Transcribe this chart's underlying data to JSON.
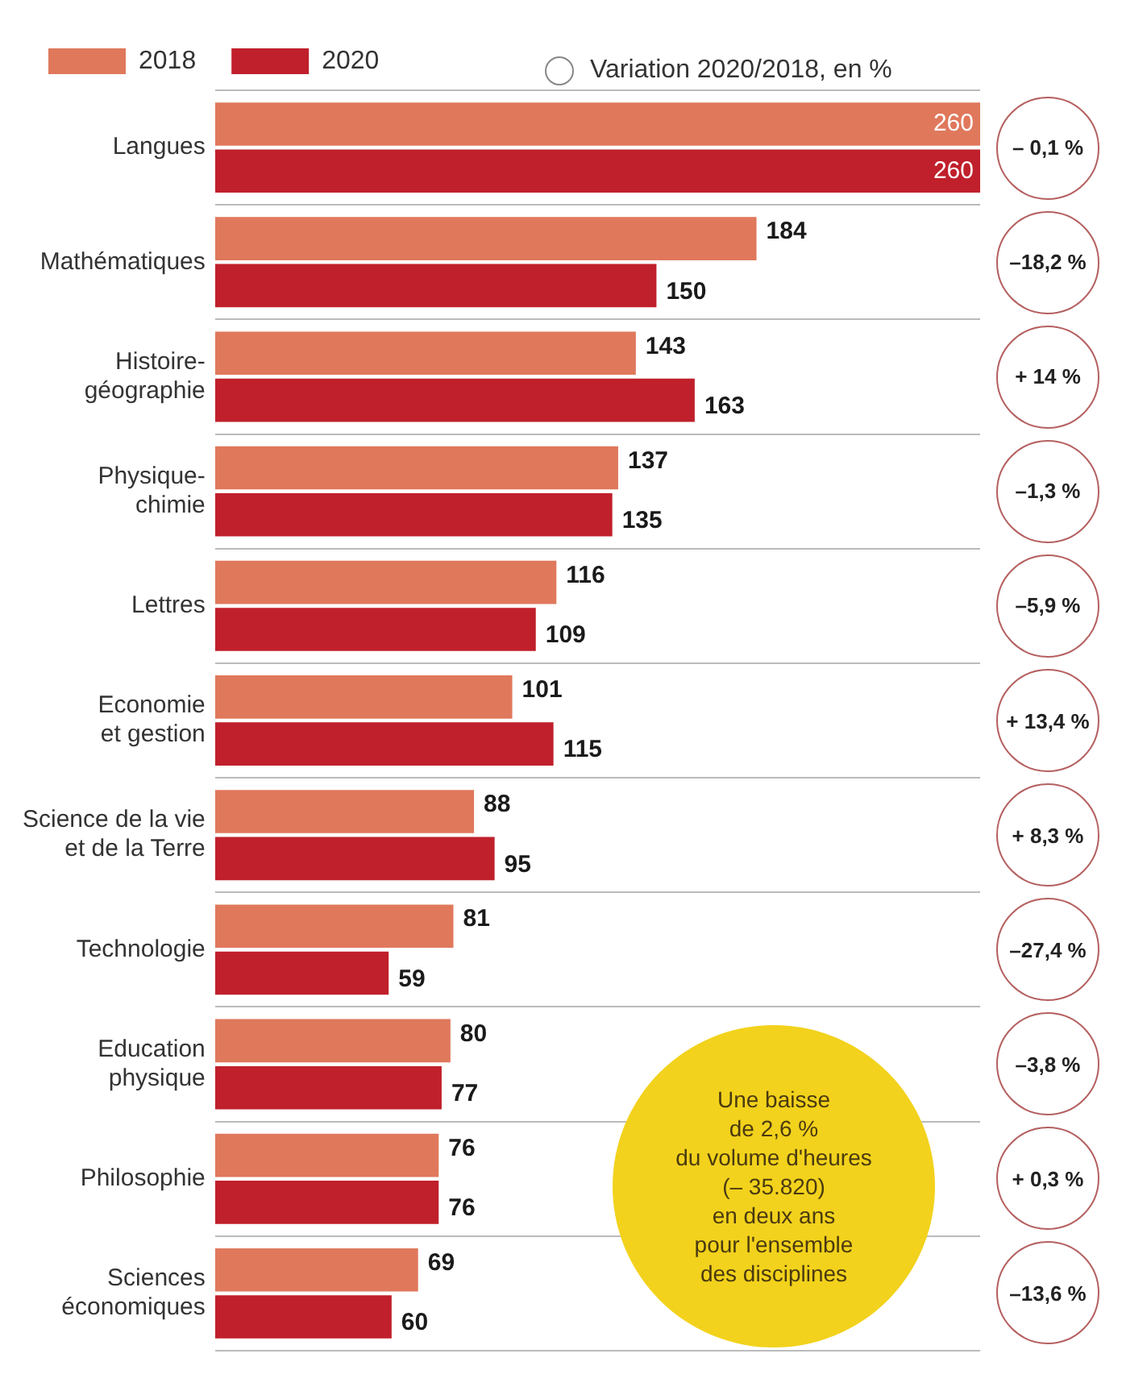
{
  "chart_data": {
    "type": "bar",
    "orientation": "horizontal",
    "categories": [
      "Langues",
      "Mathématiques",
      "Histoire-\ngéographie",
      "Physique-\nchimie",
      "Lettres",
      "Economie\net gestion",
      "Science de la vie\net de la Terre",
      "Technologie",
      "Education\nphysique",
      "Philosophie",
      "Sciences\néconomiques"
    ],
    "series": [
      {
        "name": "2018",
        "color": "#e0785c",
        "values": [
          260,
          184,
          143,
          137,
          116,
          101,
          88,
          81,
          80,
          76,
          69
        ]
      },
      {
        "name": "2020",
        "color": "#c0202b",
        "values": [
          260,
          150,
          163,
          135,
          109,
          115,
          95,
          59,
          77,
          76,
          60
        ]
      }
    ],
    "data_labels": true,
    "legend": "top left",
    "grid": "y",
    "tick_labels": "y",
    "annotations": [
      "Variation 2020/2018, en %",
      "Une baisse\nde 2,6 %\ndu volume d'heures\n(– 35.820)\nen deux ans\npour l'ensemble\ndes disciplines",
      "– 0,1 %",
      "–18,2 %",
      "+ 14 %",
      "–1,3 %",
      "–5,9 %",
      "+ 13,4 %",
      "+ 8,3 %",
      "–27,4 %",
      "–3,8 %",
      "+ 0,3 %",
      "–13,6 %"
    ]
  }
}
